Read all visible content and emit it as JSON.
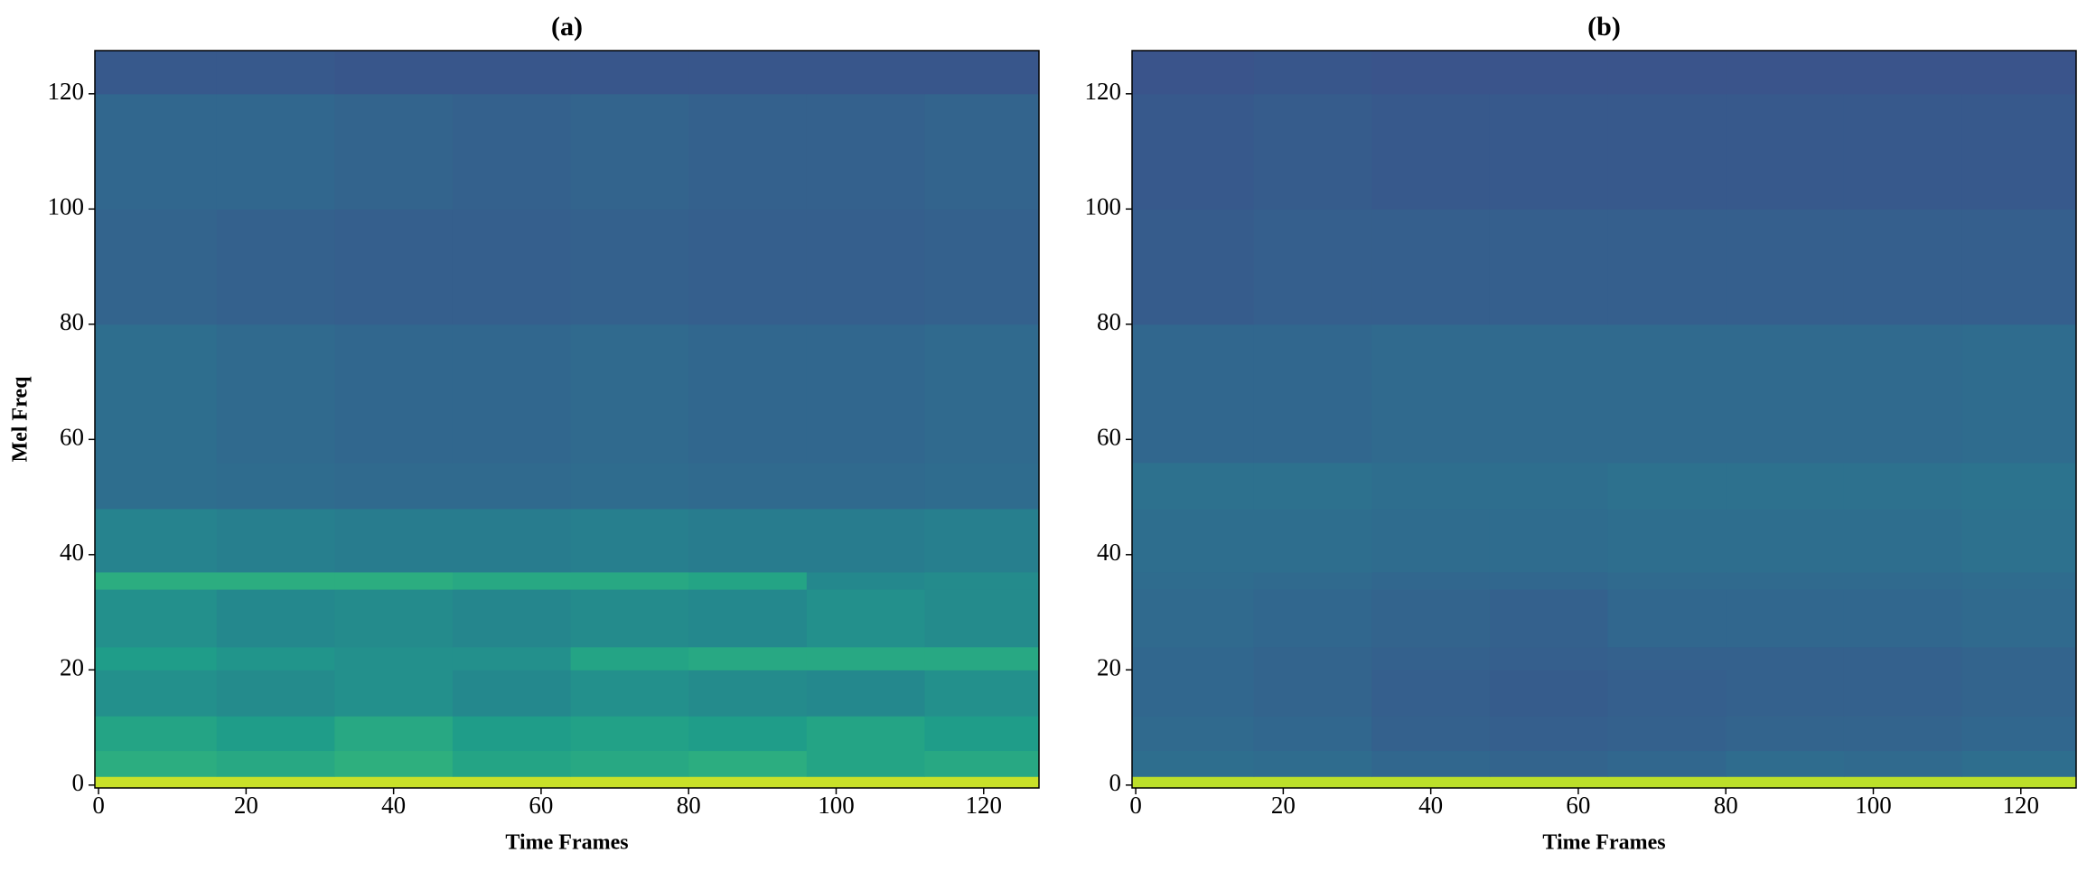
{
  "chart_data": [
    {
      "type": "heatmap",
      "title": "(a)",
      "xlabel": "Time Frames",
      "ylabel": "Mel Freq",
      "colormap": "viridis",
      "xlim": [
        -0.5,
        127.5
      ],
      "ylim": [
        -0.5,
        127.5
      ],
      "xticks": [
        0,
        20,
        40,
        60,
        80,
        100,
        120
      ],
      "yticks": [
        0,
        20,
        40,
        60,
        80,
        100,
        120
      ],
      "x_edges": [
        -0.5,
        16,
        32,
        48,
        64,
        80,
        96,
        112,
        127.5
      ],
      "y_edges": [
        -0.5,
        1.5,
        6,
        12,
        20,
        24,
        34,
        37,
        48,
        56,
        80,
        100,
        120,
        127.5
      ],
      "z": [
        [
          0.92,
          0.92,
          0.92,
          0.92,
          0.92,
          0.92,
          0.92,
          0.92
        ],
        [
          0.62,
          0.6,
          0.63,
          0.58,
          0.6,
          0.62,
          0.58,
          0.6
        ],
        [
          0.58,
          0.55,
          0.6,
          0.55,
          0.57,
          0.55,
          0.58,
          0.55
        ],
        [
          0.5,
          0.48,
          0.5,
          0.47,
          0.5,
          0.48,
          0.47,
          0.5
        ],
        [
          0.55,
          0.52,
          0.5,
          0.5,
          0.58,
          0.6,
          0.6,
          0.6
        ],
        [
          0.5,
          0.47,
          0.48,
          0.46,
          0.48,
          0.47,
          0.5,
          0.48
        ],
        [
          0.62,
          0.62,
          0.62,
          0.6,
          0.6,
          0.58,
          0.47,
          0.48
        ],
        [
          0.45,
          0.43,
          0.42,
          0.42,
          0.43,
          0.42,
          0.42,
          0.43
        ],
        [
          0.36,
          0.35,
          0.34,
          0.34,
          0.35,
          0.34,
          0.34,
          0.35
        ],
        [
          0.36,
          0.34,
          0.33,
          0.33,
          0.34,
          0.33,
          0.33,
          0.34
        ],
        [
          0.32,
          0.31,
          0.3,
          0.3,
          0.31,
          0.3,
          0.3,
          0.31
        ],
        [
          0.33,
          0.33,
          0.32,
          0.31,
          0.32,
          0.31,
          0.31,
          0.32
        ],
        [
          0.28,
          0.28,
          0.27,
          0.27,
          0.27,
          0.27,
          0.27,
          0.27
        ]
      ]
    },
    {
      "type": "heatmap",
      "title": "(b)",
      "xlabel": "Time Frames",
      "colormap": "viridis",
      "xlim": [
        -0.5,
        127.5
      ],
      "ylim": [
        -0.5,
        127.5
      ],
      "xticks": [
        0,
        20,
        40,
        60,
        80,
        100,
        120
      ],
      "yticks": [
        0,
        20,
        40,
        60,
        80,
        100,
        120
      ],
      "x_edges": [
        -0.5,
        16,
        32,
        48,
        64,
        80,
        96,
        112,
        127.5
      ],
      "y_edges": [
        -0.5,
        1.5,
        6,
        12,
        20,
        24,
        34,
        37,
        48,
        56,
        80,
        100,
        120,
        127.5
      ],
      "z": [
        [
          0.9,
          0.9,
          0.9,
          0.9,
          0.9,
          0.9,
          0.9,
          0.9
        ],
        [
          0.36,
          0.35,
          0.33,
          0.32,
          0.33,
          0.35,
          0.34,
          0.36
        ],
        [
          0.34,
          0.33,
          0.31,
          0.3,
          0.31,
          0.32,
          0.32,
          0.33
        ],
        [
          0.33,
          0.32,
          0.3,
          0.29,
          0.3,
          0.31,
          0.31,
          0.32
        ],
        [
          0.33,
          0.32,
          0.31,
          0.3,
          0.31,
          0.31,
          0.31,
          0.32
        ],
        [
          0.34,
          0.33,
          0.32,
          0.31,
          0.33,
          0.33,
          0.33,
          0.34
        ],
        [
          0.35,
          0.34,
          0.33,
          0.33,
          0.34,
          0.34,
          0.34,
          0.35
        ],
        [
          0.36,
          0.36,
          0.35,
          0.35,
          0.36,
          0.36,
          0.36,
          0.37
        ],
        [
          0.37,
          0.37,
          0.36,
          0.36,
          0.37,
          0.37,
          0.37,
          0.38
        ],
        [
          0.33,
          0.33,
          0.34,
          0.34,
          0.34,
          0.34,
          0.34,
          0.35
        ],
        [
          0.29,
          0.3,
          0.3,
          0.3,
          0.3,
          0.3,
          0.3,
          0.3
        ],
        [
          0.28,
          0.29,
          0.28,
          0.28,
          0.28,
          0.28,
          0.28,
          0.28
        ],
        [
          0.26,
          0.27,
          0.26,
          0.26,
          0.26,
          0.26,
          0.26,
          0.26
        ]
      ]
    }
  ]
}
